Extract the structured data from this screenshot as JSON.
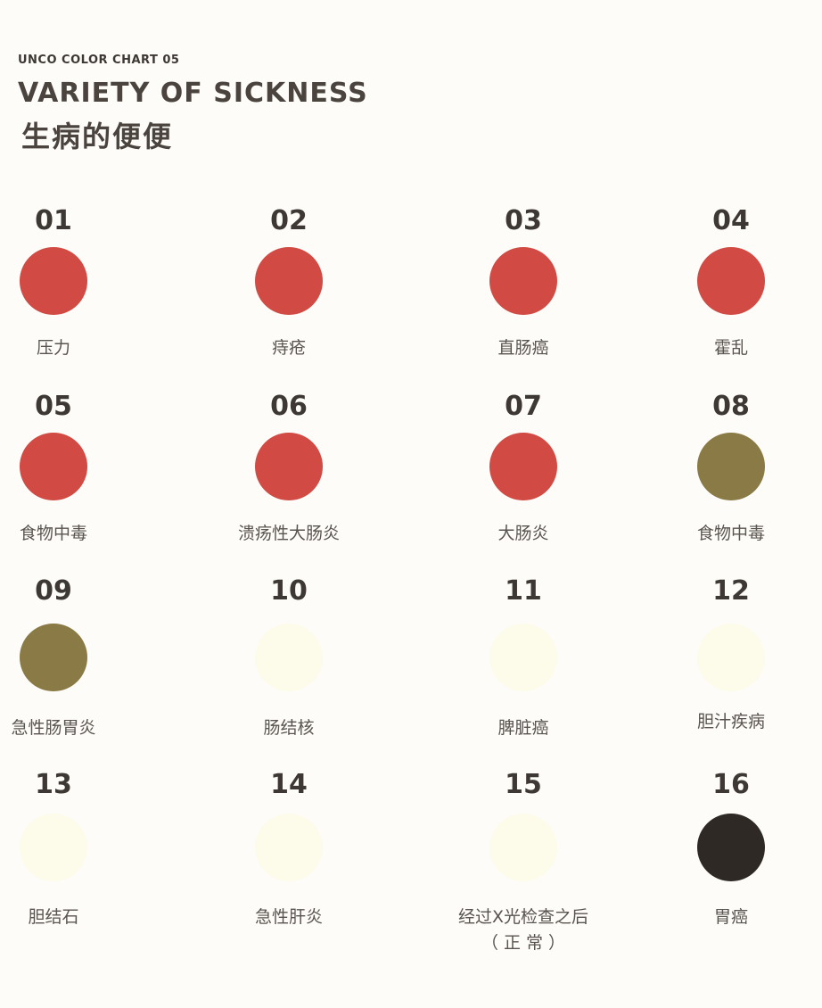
{
  "header": {
    "subtitle": "UNCO COLOR CHART 05",
    "title": "VARIETY OF SICKNESS",
    "title_cn": "生病的便便"
  },
  "items": [
    {
      "num": "01",
      "label": "压力",
      "color": "#d24a44"
    },
    {
      "num": "02",
      "label": "痔疮",
      "color": "#d24a44"
    },
    {
      "num": "03",
      "label": "直肠癌",
      "color": "#d24a44"
    },
    {
      "num": "04",
      "label": "霍乱",
      "color": "#d24a44"
    },
    {
      "num": "05",
      "label": "食物中毒",
      "color": "#d24a44"
    },
    {
      "num": "06",
      "label": "溃疡性大肠炎",
      "color": "#d24a44"
    },
    {
      "num": "07",
      "label": "大肠炎",
      "color": "#d24a44"
    },
    {
      "num": "08",
      "label": "食物中毒",
      "color": "#8a7a45"
    },
    {
      "num": "09",
      "label": "急性肠胃炎",
      "color": "#8a7a45"
    },
    {
      "num": "10",
      "label": "肠结核",
      "color": "#fdfbe9"
    },
    {
      "num": "11",
      "label": "脾脏癌",
      "color": "#fdfbe9"
    },
    {
      "num": "12",
      "label": "胆汁疾病",
      "color": "#fdfbe9"
    },
    {
      "num": "13",
      "label": "胆结石",
      "color": "#fdfbe9"
    },
    {
      "num": "14",
      "label": "急性肝炎",
      "color": "#fdfbe9"
    },
    {
      "num": "15",
      "label": "经过X光检查之后",
      "note": "（ 正 常 ）",
      "color": "#fdfbe9"
    },
    {
      "num": "16",
      "label": "胃癌",
      "color": "#2f2926"
    }
  ]
}
